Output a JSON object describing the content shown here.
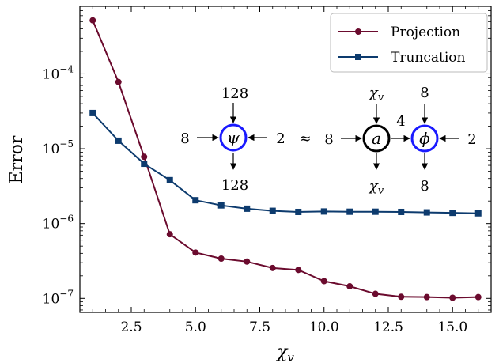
{
  "chart_data": {
    "type": "line",
    "xlabel": "χ_v",
    "ylabel": "Error",
    "yscale": "log",
    "xlim": [
      0.5,
      16.5
    ],
    "ylim": [
      6.5e-08,
      0.0008
    ],
    "x_ticks": [
      2.5,
      5.0,
      7.5,
      10.0,
      12.5,
      15.0
    ],
    "x_tick_labels": [
      "2.5",
      "5.0",
      "7.5",
      "10.0",
      "12.5",
      "15.0"
    ],
    "y_ticks": [
      1e-07,
      1e-06,
      1e-05,
      0.0001
    ],
    "y_tick_labels": [
      {
        "base": "10",
        "exp": "−7"
      },
      {
        "base": "10",
        "exp": "−6"
      },
      {
        "base": "10",
        "exp": "−5"
      },
      {
        "base": "10",
        "exp": "−4"
      }
    ],
    "legend_position": "top-right",
    "series": [
      {
        "name": "Projection",
        "color": "#6b0b2e",
        "marker": "circle",
        "x": [
          1,
          2,
          3,
          4,
          5,
          6,
          7,
          8,
          9,
          10,
          11,
          12,
          13,
          14,
          15,
          16
        ],
        "y": [
          0.00052,
          7.8e-05,
          7.8e-06,
          7.2e-07,
          4.1e-07,
          3.4e-07,
          3.1e-07,
          2.55e-07,
          2.4e-07,
          1.7e-07,
          1.45e-07,
          1.15e-07,
          1.05e-07,
          1.04e-07,
          1.02e-07,
          1.04e-07
        ]
      },
      {
        "name": "Truncation",
        "color": "#0d3b6e",
        "marker": "square",
        "x": [
          1,
          2,
          3,
          4,
          5,
          6,
          7,
          8,
          9,
          10,
          11,
          12,
          13,
          14,
          15,
          16
        ],
        "y": [
          3e-05,
          1.28e-05,
          6.3e-06,
          3.8e-06,
          2.05e-06,
          1.75e-06,
          1.58e-06,
          1.48e-06,
          1.43e-06,
          1.45e-06,
          1.44e-06,
          1.44e-06,
          1.43e-06,
          1.41e-06,
          1.39e-06,
          1.37e-06
        ]
      }
    ],
    "inset_diagram": {
      "lhs": {
        "node": "ψ",
        "left": "8",
        "right": "2",
        "top": "128",
        "bottom": "128"
      },
      "approx": "≈",
      "rhs_a": {
        "node": "a",
        "left": "8",
        "top": "χ_v",
        "bottom": "χ_v"
      },
      "bond": "4",
      "rhs_b": {
        "node": "ϕ",
        "right": "2",
        "top": "8",
        "bottom": "8"
      }
    }
  }
}
